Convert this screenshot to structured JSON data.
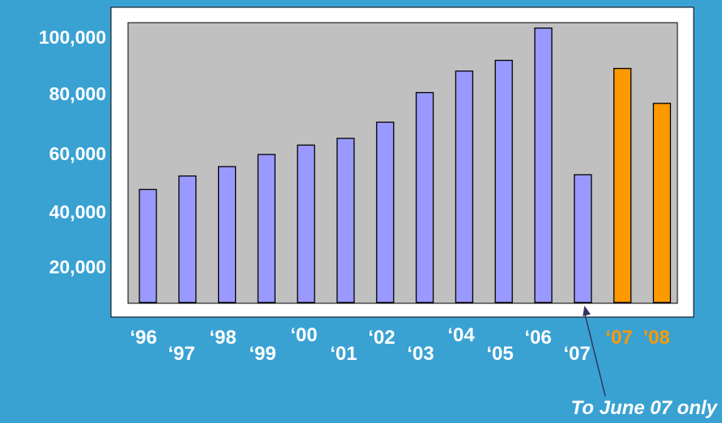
{
  "chart_data": {
    "type": "bar",
    "categories": [
      "‘96",
      "‘97",
      "‘98",
      "‘99",
      "‘00",
      "‘01",
      "‘02",
      "‘03",
      "‘04",
      "‘05",
      "‘06",
      "‘07",
      "‘07",
      "’08"
    ],
    "values": [
      42000,
      47000,
      50500,
      55000,
      58500,
      61000,
      67000,
      78000,
      86000,
      90000,
      102000,
      47500,
      87000,
      74000
    ],
    "colors": [
      "#9999ff",
      "#9999ff",
      "#9999ff",
      "#9999ff",
      "#9999ff",
      "#9999ff",
      "#9999ff",
      "#9999ff",
      "#9999ff",
      "#9999ff",
      "#9999ff",
      "#9999ff",
      "#ff9900",
      "#ff9900"
    ],
    "label_colors": [
      "#ffffff",
      "#ffffff",
      "#ffffff",
      "#ffffff",
      "#ffffff",
      "#ffffff",
      "#ffffff",
      "#ffffff",
      "#ffffff",
      "#ffffff",
      "#ffffff",
      "#ffffff",
      "#ff9900",
      "#ff9900"
    ],
    "yticks": [
      "20,000",
      "40,000",
      "60,000",
      "80,000",
      "100,000"
    ],
    "ytick_values": [
      20000,
      40000,
      60000,
      80000,
      100000
    ],
    "ylim": [
      0,
      104000
    ],
    "grid": false,
    "legend": "none",
    "annotation": {
      "text": "To June 07 only",
      "target_index": 11
    },
    "title": "",
    "xlabel": "",
    "ylabel": ""
  },
  "colors": {
    "background": "#3aa2d3",
    "frame": "#ffffff",
    "plot_area": "#c0c0c0",
    "bar_default": "#9999ff",
    "bar_highlight": "#ff9900",
    "arrow": "#333366"
  }
}
